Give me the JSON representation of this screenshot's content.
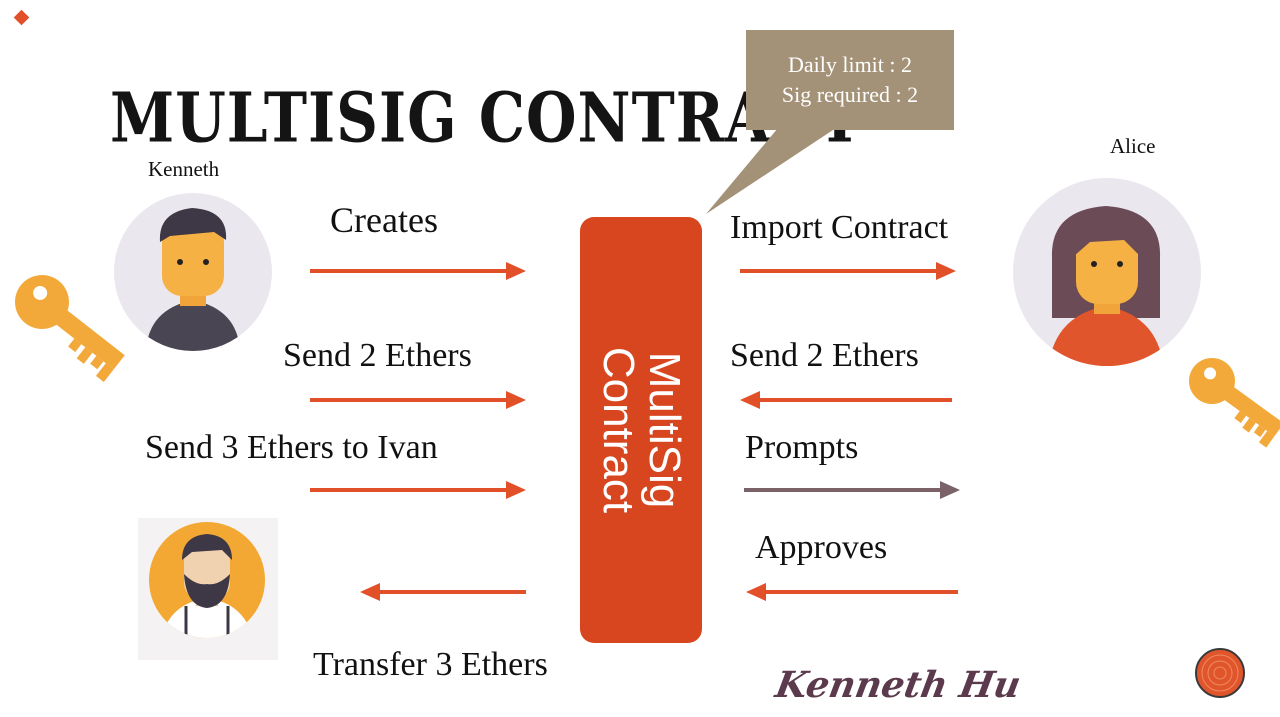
{
  "title": "MULTISIG CONTRACT",
  "actors": {
    "kenneth": "Kenneth",
    "alice": "Alice"
  },
  "callout": {
    "line1": "Daily limit : 2",
    "line2": "Sig required : 2"
  },
  "contract": {
    "line1": "MultiSig",
    "line2": "Contract"
  },
  "flows": {
    "creates": "Creates",
    "send_2_left": "Send 2 Ethers",
    "send_3_ivan": "Send 3 Ethers to Ivan",
    "transfer_3": "Transfer 3 Ethers",
    "import_contract": "Import Contract",
    "send_2_right": "Send 2 Ethers",
    "prompts": "Prompts",
    "approves": "Approves"
  },
  "author": "Kenneth Hu",
  "colors": {
    "accent": "#e2502a",
    "contract": "#d7461f",
    "callout": "#a39277",
    "prompt_arrow": "#7a6268",
    "key": "#f3a93a"
  }
}
